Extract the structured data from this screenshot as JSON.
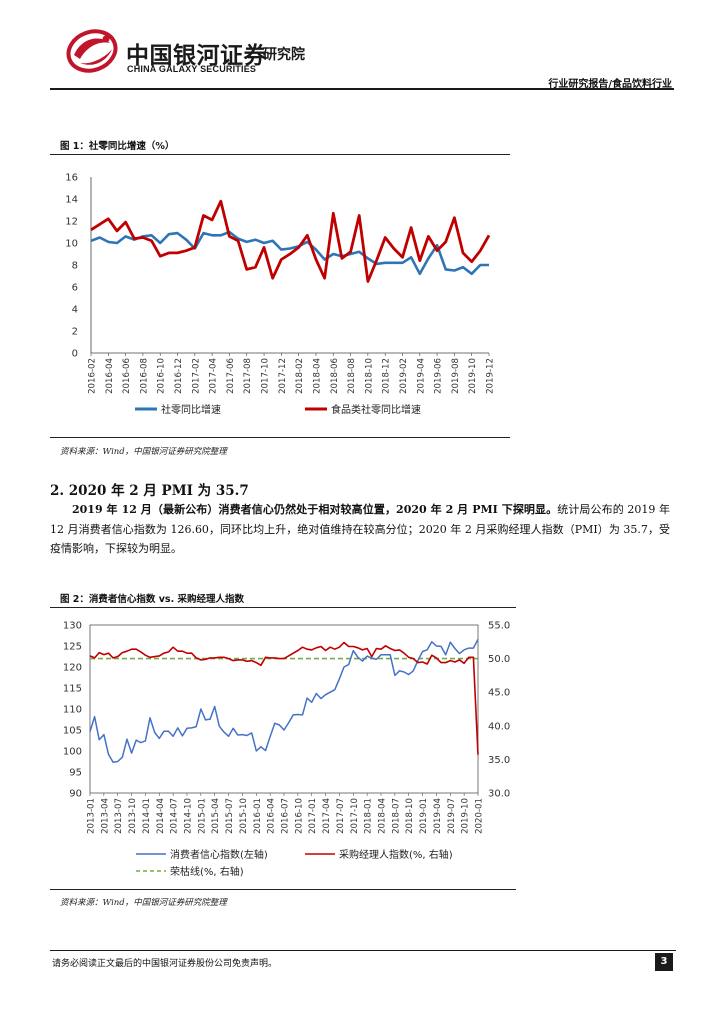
{
  "header": {
    "logo_cn": "中国银河证券",
    "logo_en": "CHINA GALAXY SECURITIES",
    "logo_suffix": "研究院",
    "report_type": "行业研究报告/食品饮料行业"
  },
  "figure1": {
    "title": "图 1：社零同比增速（%）",
    "source": "资料来源：Wind，中国银河证券研究院整理"
  },
  "section": {
    "heading": "2. 2020 年 2 月 PMI 为 35.7",
    "para_bold": "2019 年 12 月（最新公布）消费者信心仍然处于相对较高位置，2020 年 2 月 PMI 下探明显。",
    "para_rest": "统计局公布的 2019 年 12 月消费者信心指数为 126.60，同环比均上升，绝对值维持在较高分位；2020 年 2 月采购经理人指数（PMI）为 35.7，受疫情影响，下探较为明显。"
  },
  "figure2": {
    "title": "图 2：消费者信心指数 vs. 采购经理人指数",
    "source": "资料来源：Wind，中国银河证券研究院整理"
  },
  "footer": {
    "disclaimer": "请务必阅读正文最后的中国银河证券股份公司免责声明。",
    "page": "3"
  },
  "colors": {
    "blue": "#2e75b6",
    "red": "#c00000",
    "green": "#70ad47",
    "logo_red": "#c0152a"
  },
  "chart_data": [
    {
      "type": "line",
      "ylim": [
        0,
        16
      ],
      "yticks": [
        0,
        2,
        4,
        6,
        8,
        10,
        12,
        14,
        16
      ],
      "xticks": [
        "2016-02",
        "2016-04",
        "2016-06",
        "2016-08",
        "2016-10",
        "2016-12",
        "2017-02",
        "2017-04",
        "2017-06",
        "2017-08",
        "2017-10",
        "2017-12",
        "2018-02",
        "2018-04",
        "2018-06",
        "2018-08",
        "2018-10",
        "2018-12",
        "2019-02",
        "2019-04",
        "2019-06",
        "2019-08",
        "2019-10",
        "2019-12"
      ],
      "series": [
        {
          "name": "社零同比增速",
          "color": "#2e75b6",
          "values": [
            10.2,
            10.5,
            10.1,
            10.0,
            10.6,
            10.3,
            10.6,
            10.7,
            10.0,
            10.8,
            10.9,
            10.3,
            9.5,
            10.9,
            10.7,
            10.7,
            11.0,
            10.4,
            10.1,
            10.3,
            10.0,
            10.2,
            9.4,
            9.5,
            9.7,
            10.1,
            9.4,
            8.5,
            9.0,
            8.8,
            9.0,
            9.2,
            8.6,
            8.1,
            8.2,
            8.2,
            8.2,
            8.7,
            7.2,
            8.6,
            9.8,
            7.6,
            7.5,
            7.8,
            7.2,
            8.0,
            8.0
          ]
        },
        {
          "name": "食品类社零同比增速",
          "color": "#c00000",
          "values": [
            11.2,
            11.7,
            12.2,
            11.1,
            11.9,
            10.4,
            10.5,
            10.2,
            8.8,
            9.1,
            9.1,
            9.3,
            9.6,
            12.5,
            12.1,
            13.8,
            10.6,
            10.2,
            7.6,
            7.8,
            9.6,
            6.8,
            8.5,
            9.0,
            9.6,
            10.7,
            8.5,
            6.8,
            12.7,
            8.6,
            9.2,
            12.5,
            6.5,
            8.4,
            10.5,
            9.5,
            8.7,
            11.4,
            8.4,
            10.6,
            9.3,
            10.1,
            12.3,
            9.1,
            8.3,
            9.3,
            10.7
          ]
        }
      ]
    },
    {
      "type": "line",
      "ylim": [
        90,
        130
      ],
      "y2lim": [
        30,
        55
      ],
      "yticks": [
        90,
        95,
        100,
        105,
        110,
        115,
        120,
        125,
        130
      ],
      "y2ticks": [
        "30.0",
        "35.0",
        "40.0",
        "45.0",
        "50.0",
        "55.0"
      ],
      "xticks": [
        "2013-01",
        "2013-04",
        "2013-07",
        "2013-10",
        "2014-01",
        "2014-04",
        "2014-07",
        "2014-10",
        "2015-01",
        "2015-04",
        "2015-07",
        "2015-10",
        "2016-01",
        "2016-04",
        "2016-07",
        "2016-10",
        "2017-01",
        "2017-04",
        "2017-07",
        "2017-10",
        "2018-01",
        "2018-04",
        "2018-07",
        "2018-10",
        "2019-01",
        "2019-04",
        "2019-07",
        "2019-10",
        "2020-01"
      ],
      "series": [
        {
          "name": "消费者信心指数(左轴)",
          "color": "#4472c4",
          "axis": "left",
          "values": [
            104.6,
            108.2,
            102.7,
            103.9,
            99.2,
            97.3,
            97.5,
            98.5,
            102.8,
            99.5,
            102.6,
            102.0,
            102.4,
            107.9,
            104.4,
            103.0,
            104.7,
            104.7,
            103.5,
            105.5,
            103.6,
            105.4,
            105.5,
            105.8,
            110.0,
            107.4,
            107.6,
            110.6,
            105.9,
            104.5,
            103.5,
            105.4,
            103.8,
            103.9,
            103.7,
            104.3,
            100.0,
            101.0,
            100.1,
            103.4,
            106.6,
            106.2,
            105.0,
            106.7,
            108.6,
            108.7,
            108.6,
            112.6,
            111.6,
            113.7,
            112.5,
            113.4,
            114.0,
            114.6,
            117.2,
            120.0,
            120.6,
            123.9,
            122.3,
            121.4,
            122.6,
            122.1,
            121.8,
            122.9,
            122.9,
            122.9,
            118.0,
            119.1,
            118.8,
            118.2,
            119.1,
            121.6,
            123.7,
            124.1,
            126.0,
            125.0,
            124.9,
            122.9,
            125.9,
            124.4,
            123.2,
            124.1,
            124.5,
            124.5,
            126.6
          ]
        },
        {
          "name": "采购经理人指数(%, 右轴)",
          "color": "#c00000",
          "axis": "right",
          "values": [
            50.4,
            50.1,
            50.9,
            50.6,
            50.8,
            50.1,
            50.3,
            50.9,
            51.1,
            51.4,
            51.4,
            51.0,
            50.5,
            50.2,
            50.3,
            50.4,
            50.8,
            51.0,
            51.7,
            51.1,
            51.1,
            50.8,
            50.8,
            50.1,
            49.8,
            49.9,
            50.1,
            50.1,
            50.2,
            50.2,
            50.0,
            49.7,
            49.8,
            49.8,
            49.6,
            49.7,
            49.4,
            49.0,
            50.2,
            50.1,
            50.1,
            50.0,
            50.0,
            50.4,
            50.8,
            51.2,
            51.7,
            51.4,
            51.3,
            51.6,
            51.8,
            51.2,
            51.7,
            51.4,
            51.7,
            52.4,
            51.8,
            51.8,
            51.6,
            51.3,
            51.5,
            50.3,
            51.5,
            51.4,
            51.9,
            51.5,
            51.2,
            51.3,
            50.8,
            50.2,
            50.0,
            49.4,
            49.5,
            49.2,
            50.5,
            50.1,
            49.4,
            49.4,
            49.7,
            49.5,
            49.8,
            49.3,
            50.2,
            50.2,
            35.7
          ]
        },
        {
          "name": "荣枯线(%, 右轴)",
          "color": "#70ad47",
          "axis": "right",
          "dashed": true,
          "values": [
            50,
            50
          ]
        }
      ]
    }
  ]
}
